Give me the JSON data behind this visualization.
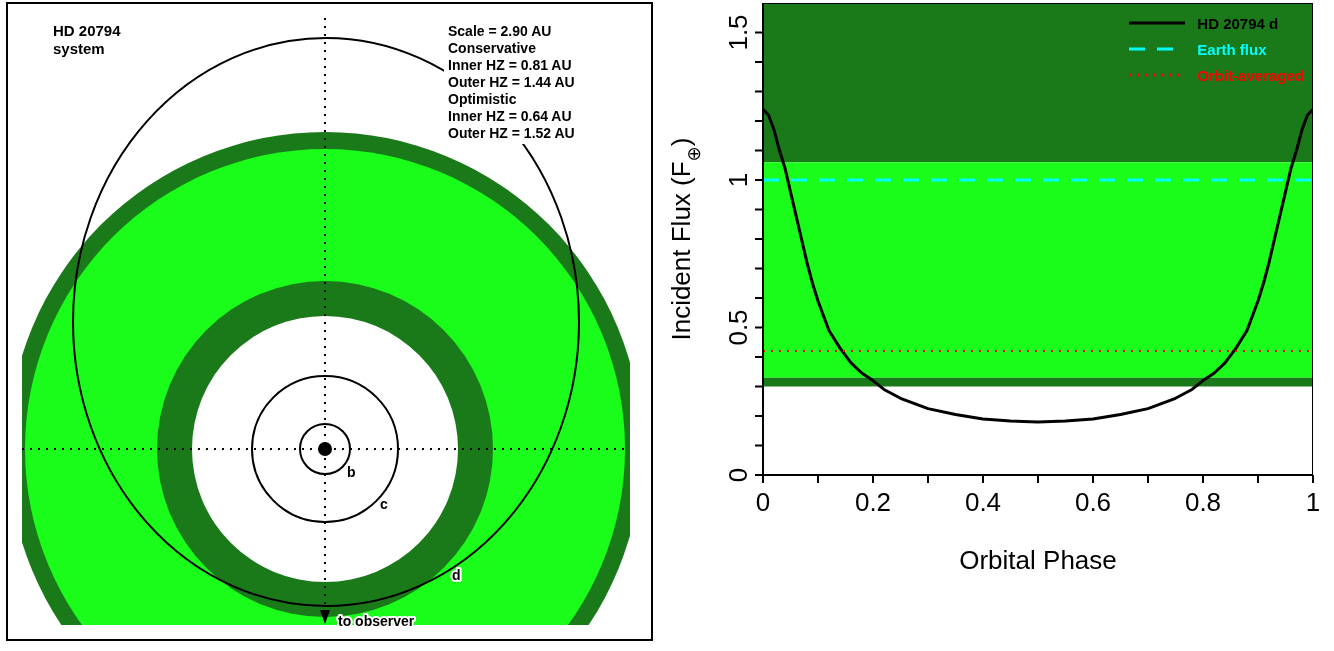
{
  "chart_data": [
    {
      "type": "other",
      "title": "HD 20794 system",
      "annotations": [
        "Scale = 2.90 AU",
        "Conservative",
        "Inner HZ = 0.81 AU",
        "Outer HZ = 1.44 AU",
        "Optimistic",
        "Inner HZ = 0.64 AU",
        "Outer HZ = 1.52 AU",
        "b",
        "c",
        "d",
        "to observer"
      ]
    },
    {
      "type": "line",
      "xlabel": "Orbital Phase",
      "ylabel": "Incident Flux (F$_{⊕}$)",
      "xlim": [
        0,
        1
      ],
      "ylim": [
        0,
        1.6
      ],
      "xticks": [
        0,
        {
          "value": 0.1,
          "label": null
        },
        0.2,
        {
          "value": 0.3,
          "label": null
        },
        0.4,
        {
          "value": 0.5,
          "label": null
        },
        0.6,
        {
          "value": 0.7,
          "label": null
        },
        0.8,
        {
          "value": 0.9,
          "label": null
        },
        1
      ],
      "yticks": [
        0,
        {
          "value": 0.1,
          "label": null
        },
        {
          "value": 0.2,
          "label": null
        },
        {
          "value": 0.3,
          "label": null
        },
        {
          "value": 0.4,
          "label": null
        },
        0.5,
        {
          "value": 0.6,
          "label": null
        },
        {
          "value": 0.7,
          "label": null
        },
        {
          "value": 0.8,
          "label": null
        },
        {
          "value": 0.9,
          "label": null
        },
        1,
        {
          "value": 1.1,
          "label": null
        },
        {
          "value": 1.2,
          "label": null
        },
        {
          "value": 1.3,
          "label": null
        },
        {
          "value": 1.4,
          "label": null
        },
        1.5
      ],
      "bands": [
        {
          "axis": "y",
          "from": 1.06,
          "to": 1.6,
          "color": "#1a7a1a"
        },
        {
          "axis": "y",
          "from": 0.33,
          "to": 1.06,
          "color": "#1afc1a"
        },
        {
          "axis": "y",
          "from": 0.3,
          "to": 0.33,
          "color": "#1a7a1a"
        }
      ],
      "series": [
        {
          "name": "HD 20794 d",
          "color": "#000000",
          "line_style": "solid",
          "x": [
            0,
            0.01,
            0.02,
            0.03,
            0.04,
            0.05,
            0.06,
            0.07,
            0.08,
            0.09,
            0.1,
            0.12,
            0.14,
            0.16,
            0.18,
            0.2,
            0.22,
            0.25,
            0.3,
            0.35,
            0.4,
            0.45,
            0.5,
            0.55,
            0.6,
            0.65,
            0.7,
            0.75,
            0.78,
            0.8,
            0.82,
            0.84,
            0.86,
            0.88,
            0.9,
            0.91,
            0.92,
            0.93,
            0.94,
            0.95,
            0.96,
            0.97,
            0.98,
            0.99,
            1
          ],
          "values": [
            1.24,
            1.22,
            1.17,
            1.1,
            1.04,
            0.96,
            0.88,
            0.8,
            0.72,
            0.65,
            0.59,
            0.49,
            0.43,
            0.38,
            0.345,
            0.32,
            0.29,
            0.26,
            0.225,
            0.205,
            0.19,
            0.183,
            0.18,
            0.183,
            0.19,
            0.205,
            0.225,
            0.26,
            0.29,
            0.32,
            0.345,
            0.38,
            0.43,
            0.49,
            0.59,
            0.65,
            0.72,
            0.8,
            0.88,
            0.96,
            1.04,
            1.1,
            1.17,
            1.22,
            1.24
          ]
        },
        {
          "name": "Earth flux",
          "color": "#00ffff",
          "line_style": "dashed",
          "x": [
            0,
            1
          ],
          "values": [
            1,
            1
          ]
        },
        {
          "name": "Orbit-averaged",
          "color": "#ff0000",
          "line_style": "dotted",
          "x": [
            0,
            1
          ],
          "values": [
            0.42,
            0.42
          ]
        }
      ],
      "legend": "top right",
      "marker": "none",
      "grid": false
    }
  ]
}
